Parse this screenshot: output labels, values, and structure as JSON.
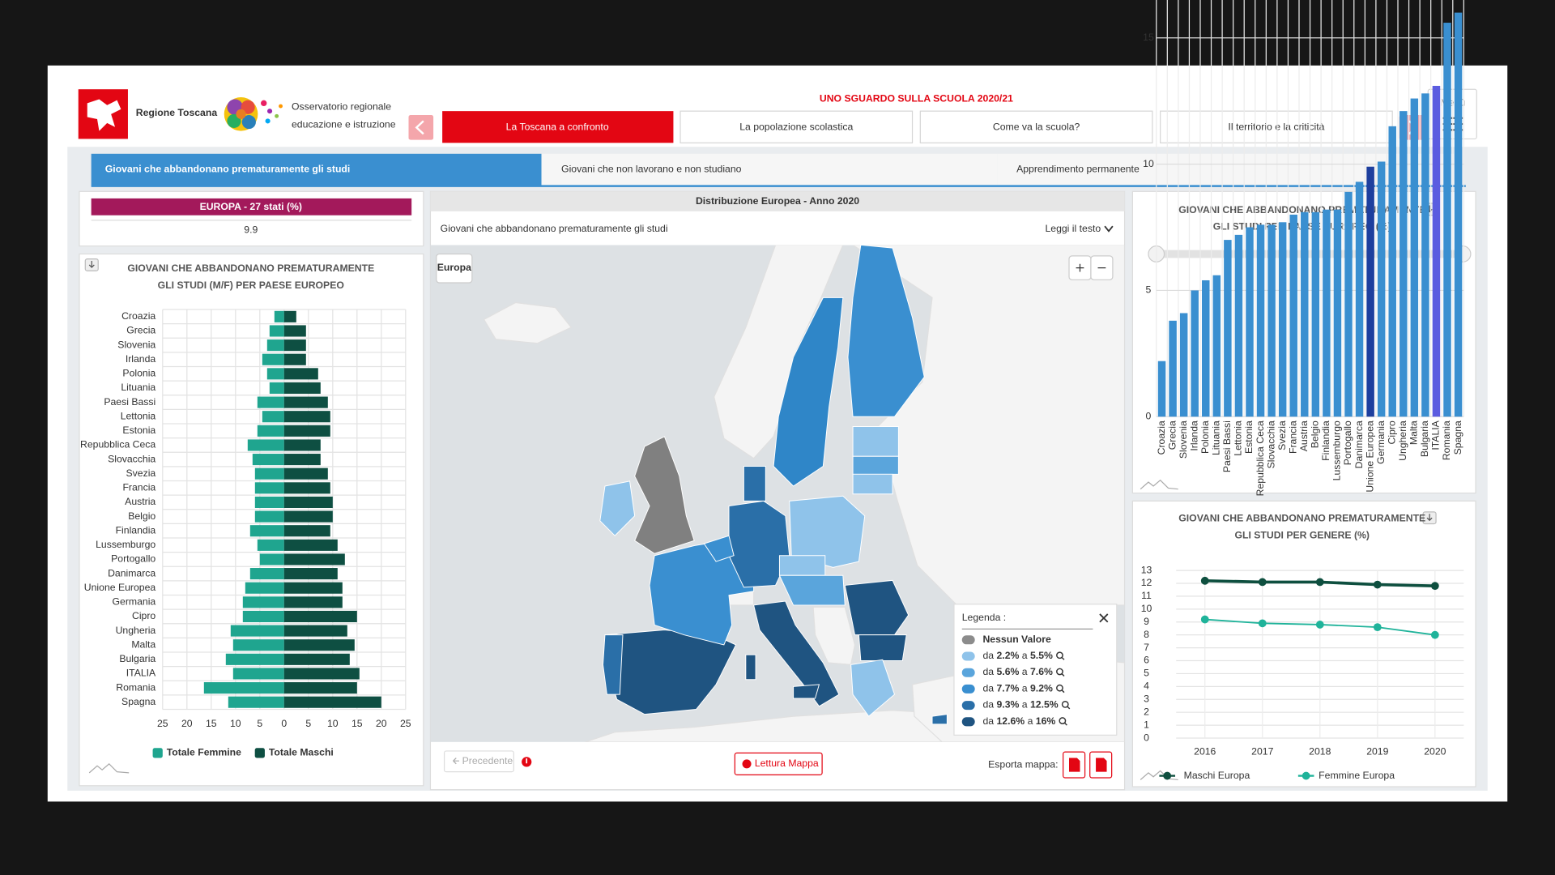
{
  "header": {
    "region": "Regione Toscana",
    "observatory": [
      "Osservatorio regionale",
      "educazione e istruzione"
    ],
    "title": "UNO SGUARDO SULLA SCUOLA 2020/21",
    "nav": [
      "La Toscana a confronto",
      "La popolazione scolastica",
      "Come va la scuola?",
      "Il territorio e la criticità"
    ],
    "menu": "Menù"
  },
  "subtabs": [
    "Giovani che abbandonano prematuramente gli studi",
    "Giovani che non lavorano e non studiano",
    "Apprendimento permanente"
  ],
  "summary": {
    "label": "EUROPA - 27 stati (%)",
    "value": 9.9
  },
  "map": {
    "title": "Distribuzione Europea - Anno 2020",
    "subtitle": "Giovani che abbandonano prematuramente gli studi",
    "read_text": "Leggi il testo",
    "region": "Europa",
    "legend": {
      "title": "Legenda :",
      "items": [
        "Nessun Valore",
        "da 2.2% a 5.5%",
        "da 5.6% a 7.6%",
        "da 7.7% a 9.2%",
        "da 9.3% a 12.5%",
        "da 12.6% a 16%"
      ],
      "colors": [
        "#8c8c8c",
        "#8fc3ea",
        "#5aa5dc",
        "#3a8fd0",
        "#2a6fa8",
        "#1f5481"
      ]
    },
    "previous": "Precedente",
    "reading": "Lettura Mappa",
    "export": "Esporta mappa:"
  },
  "chart_data": [
    {
      "type": "pyramid",
      "title": [
        "GIOVANI CHE ABBANDONANO PREMATURAMENTE",
        "GLI STUDI (M/F) PER PAESE EUROPEO"
      ],
      "categories": [
        "Croazia",
        "Grecia",
        "Slovenia",
        "Irlanda",
        "Polonia",
        "Lituania",
        "Paesi Bassi",
        "Lettonia",
        "Estonia",
        "Repubblica Ceca",
        "Slovacchia",
        "Svezia",
        "Francia",
        "Austria",
        "Belgio",
        "Finlandia",
        "Lussemburgo",
        "Portogallo",
        "Danimarca",
        "Unione Europea",
        "Germania",
        "Cipro",
        "Ungheria",
        "Malta",
        "Bulgaria",
        "ITALIA",
        "Romania",
        "Spagna"
      ],
      "series": [
        {
          "name": "Totale Femmine",
          "color": "#1fa58f",
          "values": [
            -2,
            -3,
            -3.5,
            -4.5,
            -3.5,
            -3,
            -5.5,
            -4.5,
            -5.5,
            -7.5,
            -6.5,
            -6,
            -6,
            -6,
            -6,
            -7,
            -5.5,
            -5,
            -7,
            -8,
            -8.5,
            -8.5,
            -11,
            -10.5,
            -12,
            -10.5,
            -16.5,
            -11.5
          ]
        },
        {
          "name": "Totale Maschi",
          "color": "#0e4f42",
          "values": [
            2.5,
            4.5,
            4.5,
            4.5,
            7,
            7.5,
            9,
            9.5,
            9.5,
            7.5,
            7.5,
            9,
            9.5,
            10,
            10,
            9.5,
            11,
            12.5,
            11,
            12,
            12,
            15,
            13,
            14.5,
            13.5,
            15.5,
            15,
            20
          ]
        }
      ],
      "xlim": [
        -25,
        25
      ],
      "xticks": [
        {
          "value": -25,
          "label": "25"
        },
        {
          "value": -20,
          "label": "20"
        },
        {
          "value": -15,
          "label": "15"
        },
        {
          "value": -10,
          "label": "10"
        },
        {
          "value": -5,
          "label": "5"
        },
        0,
        5,
        10,
        15,
        20,
        25
      ],
      "grid": true
    },
    {
      "type": "bar",
      "title": [
        "GIOVANI CHE ABBANDONANO PREMATURAMENTE",
        "GLI STUDI PER PAESE EUROPEO (%)"
      ],
      "categories": [
        "Croazia",
        "Grecia",
        "Slovenia",
        "Irlanda",
        "Polonia",
        "Lituania",
        "Paesi Bassi",
        "Lettonia",
        "Estonia",
        "Repubblica Ceca",
        "Slovacchia",
        "Svezia",
        "Francia",
        "Austria",
        "Belgio",
        "Finlandia",
        "Lussemburgo",
        "Portogallo",
        "Danimarca",
        "Unione Europea",
        "Germania",
        "Cipro",
        "Ungheria",
        "Malta",
        "Bulgaria",
        "ITALIA",
        "Romania",
        "Spagna"
      ],
      "values": [
        2.2,
        3.8,
        4.1,
        5.0,
        5.4,
        5.6,
        7.0,
        7.2,
        7.5,
        7.6,
        7.6,
        7.7,
        8.0,
        8.1,
        8.1,
        8.2,
        8.2,
        8.9,
        9.3,
        9.9,
        10.1,
        11.5,
        12.1,
        12.6,
        12.8,
        13.1,
        15.6,
        16.0
      ],
      "colors": [
        "#3a8fd0",
        "#3a8fd0",
        "#3a8fd0",
        "#3a8fd0",
        "#3a8fd0",
        "#3a8fd0",
        "#3a8fd0",
        "#3a8fd0",
        "#3a8fd0",
        "#3a8fd0",
        "#3a8fd0",
        "#3a8fd0",
        "#3a8fd0",
        "#3a8fd0",
        "#3a8fd0",
        "#3a8fd0",
        "#3a8fd0",
        "#3a8fd0",
        "#3a8fd0",
        "#1e3f9e",
        "#3a8fd0",
        "#3a8fd0",
        "#3a8fd0",
        "#3a8fd0",
        "#3a8fd0",
        "#5b5ce0",
        "#3a8fd0",
        "#3a8fd0"
      ],
      "ylim": [
        0,
        16.5
      ],
      "yticks": [
        0,
        5,
        10,
        15
      ],
      "grid": true
    },
    {
      "type": "line",
      "title": [
        "GIOVANI CHE ABBANDONANO PREMATURAMENTE",
        "GLI STUDI PER GENERE (%)"
      ],
      "x": [
        2016,
        2017,
        2018,
        2019,
        2020
      ],
      "xlim": [
        2015.5,
        2020.5
      ],
      "xticks": [
        2016,
        2017,
        2018,
        2019,
        2020
      ],
      "series": [
        {
          "name": "Maschi Europa",
          "color": "#0e4f3f",
          "values": [
            12.2,
            12.1,
            12.1,
            11.9,
            11.8
          ]
        },
        {
          "name": "Femmine Europa",
          "color": "#1fb39a",
          "values": [
            9.2,
            8.9,
            8.8,
            8.6,
            8.0
          ]
        }
      ],
      "ylim": [
        0,
        13
      ],
      "yticks": [
        0,
        1,
        2,
        3,
        4,
        5,
        6,
        7,
        8,
        9,
        10,
        11,
        12,
        13
      ],
      "grid": true
    }
  ]
}
